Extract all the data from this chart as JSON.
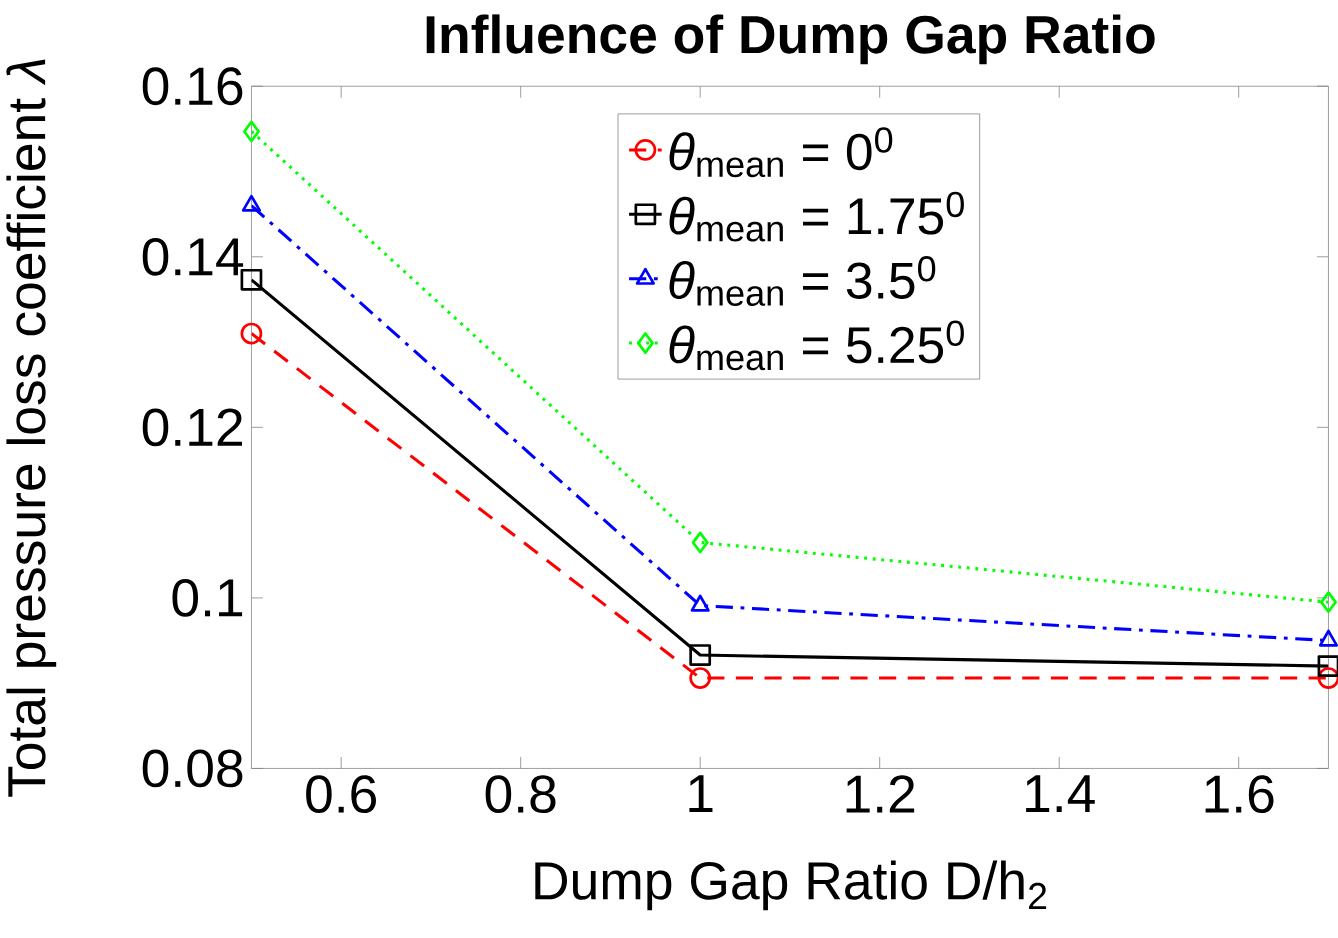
{
  "chart_data": {
    "type": "line",
    "title": "Influence of Dump Gap Ratio",
    "xlabel": "Dump Gap Ratio D/h$_{2}$",
    "ylabel": "Total pressure loss coefficient *λ*",
    "xlim": [
      0.5,
      1.7
    ],
    "xticks": [
      0.6,
      0.8,
      1,
      1.2,
      1.4,
      1.6
    ],
    "ylim": [
      0.08,
      0.16
    ],
    "yticks": [
      0.08,
      0.1,
      0.12,
      0.14,
      0.16
    ],
    "grid": false,
    "legend": "top",
    "x": [
      0.5,
      1,
      1.7
    ],
    "series": [
      {
        "name": "*θ*$_{mean}$ = 0$^{0}$",
        "color": "#ff0000",
        "marker": "circle",
        "line_style": "dashed",
        "values": [
          0.131,
          0.0906,
          0.0906
        ]
      },
      {
        "name": "*θ*$_{mean}$ = 1.75$^{0}$",
        "color": "#000000",
        "marker": "square",
        "line_style": "solid",
        "values": [
          0.1373,
          0.0933,
          0.092
        ]
      },
      {
        "name": "*θ*$_{mean}$ = 3.5$^{0}$",
        "color": "#0000ff",
        "marker": "triangle",
        "line_style": "dashdot",
        "values": [
          0.146,
          0.0991,
          0.095
        ]
      },
      {
        "name": "*θ*$_{mean}$ = 5.25$^{0}$",
        "color": "#00ff00",
        "marker": "diamond",
        "line_style": "dotted",
        "values": [
          0.1547,
          0.1065,
          0.0995
        ]
      }
    ]
  }
}
